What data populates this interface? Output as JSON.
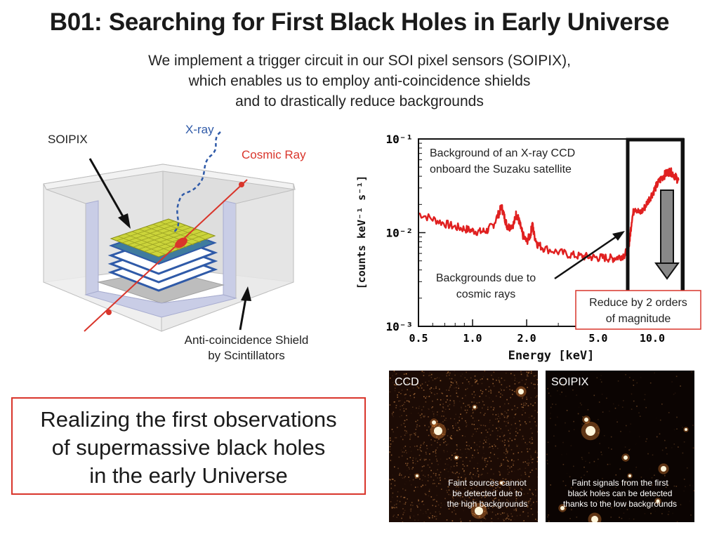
{
  "title": "B01: Searching for First Black Holes in Early Universe",
  "subtitle": [
    "We implement a trigger circuit in our SOI pixel sensors (SOIPIX),",
    "which enables us to employ anti-coincidence shields",
    "and to drastically reduce backgrounds"
  ],
  "diagram": {
    "soipix_label": "SOIPIX",
    "xray_label": "X-ray",
    "cosmic_label": "Cosmic Ray",
    "shield_label_line1": "Anti-coincidence Shield",
    "shield_label_line2": "by Scintillators"
  },
  "chart_data": {
    "type": "line",
    "title": "",
    "xlabel": "Energy [keV]",
    "ylabel": "[counts keV⁻¹ s⁻¹]",
    "xscale": "log",
    "yscale": "log",
    "xlim": [
      0.5,
      15
    ],
    "ylim": [
      0.001,
      0.1
    ],
    "xticks": [
      "0.5",
      "1.0",
      "2.0",
      "5.0",
      "10.0"
    ],
    "yticks": [
      "10⁻¹",
      "10⁻²",
      "10⁻³"
    ],
    "annotations": [
      "Background of an X-ray CCD",
      "onboard the Suzaku satellite",
      "Backgrounds due to",
      "cosmic rays",
      "Reduce by 2 orders",
      "of magnitude"
    ],
    "series": [
      {
        "x": [
          0.5,
          0.6,
          0.7,
          0.8,
          0.9,
          1.0,
          1.1,
          1.2,
          1.3,
          1.4,
          1.45,
          1.5,
          1.55,
          1.6,
          1.7,
          1.75,
          1.8,
          1.85,
          1.9,
          2.0,
          2.1,
          2.15,
          2.2,
          2.3,
          2.5,
          3.0,
          3.5,
          4.0,
          4.5,
          5.0,
          5.5,
          6.0,
          6.5,
          7.0,
          7.3,
          7.5,
          7.7,
          8.0,
          8.5,
          9.0,
          9.5,
          10.0,
          10.5,
          11.0,
          11.5,
          12.0,
          12.5,
          13.0,
          13.5,
          14.0
        ],
        "y": [
          0.016,
          0.014,
          0.0125,
          0.0115,
          0.011,
          0.0105,
          0.0102,
          0.0105,
          0.012,
          0.016,
          0.019,
          0.015,
          0.012,
          0.0115,
          0.0125,
          0.016,
          0.014,
          0.0115,
          0.0095,
          0.008,
          0.0095,
          0.0125,
          0.0095,
          0.0075,
          0.0068,
          0.0062,
          0.0058,
          0.0056,
          0.0055,
          0.0054,
          0.0054,
          0.0053,
          0.0055,
          0.0058,
          0.0065,
          0.0085,
          0.014,
          0.019,
          0.016,
          0.018,
          0.022,
          0.026,
          0.031,
          0.036,
          0.04,
          0.043,
          0.045,
          0.043,
          0.039,
          0.036
        ]
      }
    ]
  },
  "callout": [
    "Realizing the first observations",
    "of supermassive black holes",
    "in the early Universe"
  ],
  "panels": {
    "ccd": {
      "label": "CCD",
      "caption": [
        "Faint sources cannot",
        "be detected due to",
        "the high backgrounds"
      ]
    },
    "soipix": {
      "label": "SOIPIX",
      "caption": [
        "Faint signals from the first",
        "black holes can be detected",
        "thanks to the low backgrounds"
      ]
    }
  },
  "colors": {
    "red": "#d9352b",
    "blue": "#2f5aa8",
    "shield": "#c9cde6",
    "sensor": "#cbd43a"
  }
}
